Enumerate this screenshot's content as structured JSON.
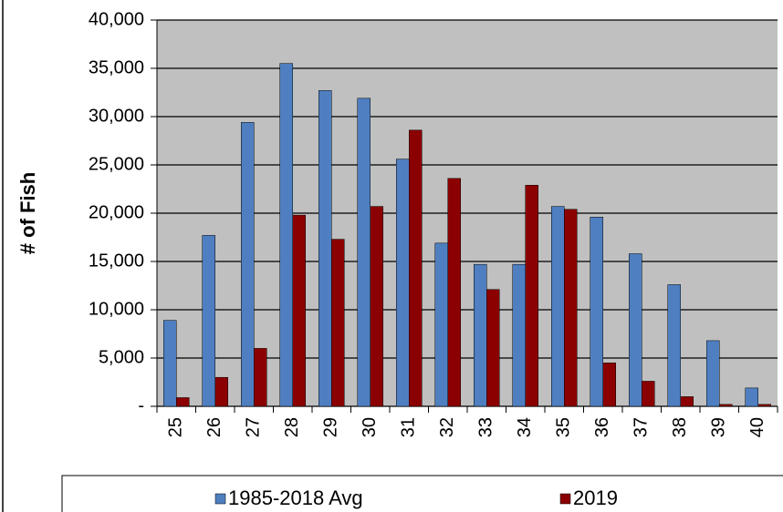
{
  "chart_data": {
    "type": "bar",
    "y_label": "# of Fish",
    "categories": [
      "25",
      "26",
      "27",
      "28",
      "29",
      "30",
      "31",
      "32",
      "33",
      "34",
      "35",
      "36",
      "37",
      "38",
      "39",
      "40"
    ],
    "series": [
      {
        "name": "1985-2018 Avg",
        "color": "#4f7fc0",
        "values": [
          8900,
          17700,
          29400,
          35500,
          32700,
          31900,
          25600,
          16900,
          14700,
          14700,
          20700,
          19600,
          15800,
          12600,
          6800,
          1900
        ]
      },
      {
        "name": "2019",
        "color": "#8b0000",
        "values": [
          900,
          3000,
          6000,
          19800,
          17300,
          20700,
          28600,
          23600,
          12100,
          22900,
          20400,
          4500,
          2600,
          1000,
          200,
          200
        ]
      }
    ],
    "ylim": [
      0,
      40000
    ],
    "yticks": [
      {
        "value": 0,
        "label": "-"
      },
      {
        "value": 5000,
        "label": "5,000"
      },
      {
        "value": 10000,
        "label": "10,000"
      },
      {
        "value": 15000,
        "label": "15,000"
      },
      {
        "value": 20000,
        "label": "20,000"
      },
      {
        "value": 25000,
        "label": "25,000"
      },
      {
        "value": 30000,
        "label": "30,000"
      },
      {
        "value": 35000,
        "label": "35,000"
      },
      {
        "value": 40000,
        "label": "40,000"
      }
    ],
    "grid": true,
    "plot_background": "#c0c0c0",
    "legend_position": "bottom"
  }
}
